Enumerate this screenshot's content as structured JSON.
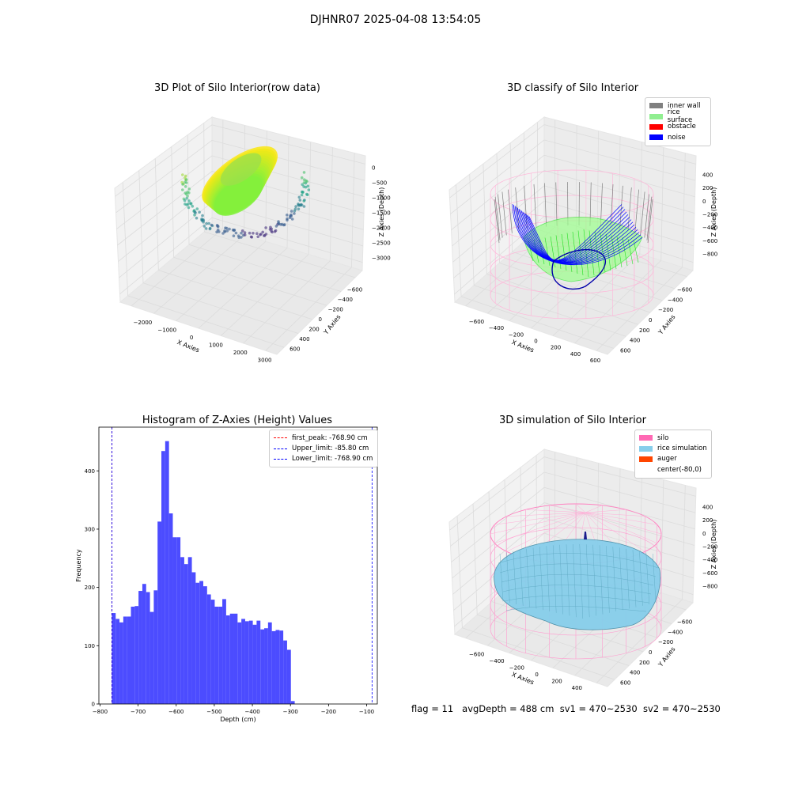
{
  "figure_title": "DJHNR07 2025-04-08 13:54:05",
  "footer": {
    "flag": "flag = 11",
    "avg_depth": "avgDepth = 488 cm",
    "sv1": "sv1 = 470~2530",
    "sv2": "sv2 = 470~2530"
  },
  "colors": {
    "inner_wall": "#808080",
    "rice_surface": "#90ee90",
    "obstacle": "#ff0000",
    "noise": "#0000ff",
    "silo": "#ff69b4",
    "rice_simulation": "#87ceeb",
    "auger": "#ff4500",
    "histogram_bars": "#4c4cff",
    "first_peak_line": "#ff0000",
    "limit_lines": "#0000ff"
  },
  "chart_data": [
    {
      "type": "scatter",
      "title": "3D Plot of Silo Interior(row data)",
      "xlabel": "X Axies",
      "ylabel": "Y Axies",
      "zlabel": "Z Axies (Depth)",
      "x_ticks": [
        "−2000",
        "−1000",
        "0",
        "1000",
        "2000",
        "3000"
      ],
      "y_ticks": [
        "600",
        "400",
        "200",
        "0",
        "−200",
        "−400",
        "−600"
      ],
      "z_ticks": [
        "0",
        "−500",
        "−1000",
        "−1500",
        "−2000",
        "−2500",
        "−3000"
      ],
      "xlim": [
        -2500,
        3000
      ],
      "ylim": [
        -650,
        650
      ],
      "zlim": [
        -3100,
        100
      ],
      "colormap": "viridis",
      "grid": true
    },
    {
      "type": "scatter",
      "title": "3D classify of Silo Interior",
      "xlabel": "X Axies",
      "ylabel": "Y Axies",
      "zlabel": "Z Axies (Depth)",
      "x_ticks": [
        "−600",
        "−400",
        "−200",
        "0",
        "200",
        "400",
        "600"
      ],
      "y_ticks": [
        "600",
        "400",
        "200",
        "0",
        "−200",
        "−400",
        "−600"
      ],
      "z_ticks": [
        "400",
        "200",
        "0",
        "−200",
        "−400",
        "−600",
        "−800"
      ],
      "legend": [
        "inner wall",
        "rice surface",
        "obstacle",
        "noise"
      ],
      "legend_position": "upper right",
      "grid": true
    },
    {
      "type": "bar",
      "title": "Histogram of Z-Axies (Height) Values",
      "xlabel": "Depth (cm)",
      "ylabel": "Frequency",
      "x_ticks": [
        "−800",
        "−700",
        "−600",
        "−500",
        "−400",
        "−300",
        "−200",
        "−100"
      ],
      "y_ticks": [
        "0",
        "100",
        "200",
        "300",
        "400"
      ],
      "xlim": [
        -803,
        -72
      ],
      "ylim": [
        0,
        475
      ],
      "bin_start": -768.9,
      "bin_width": 10.0,
      "values": [
        156,
        146,
        140,
        150,
        150,
        167,
        168,
        194,
        206,
        192,
        158,
        195,
        313,
        434,
        451,
        327,
        286,
        286,
        252,
        240,
        252,
        226,
        208,
        211,
        202,
        188,
        179,
        167,
        167,
        180,
        152,
        155,
        155,
        140,
        146,
        142,
        143,
        136,
        143,
        128,
        130,
        140,
        125,
        127,
        126,
        109,
        93,
        5
      ],
      "lines": [
        {
          "name": "first_peak: -768.90 cm",
          "x": -768.9,
          "color": "#ff0000"
        },
        {
          "name": "Upper_limit: -85.80 cm",
          "x": -85.8,
          "color": "#0000ff"
        },
        {
          "name": "Lower_limit: -768.90 cm",
          "x": -768.9,
          "color": "#0000ff"
        }
      ],
      "legend_position": "upper right"
    },
    {
      "type": "surface",
      "title": "3D simulation of Silo Interior",
      "xlabel": "X Axies",
      "ylabel": "Y Axies",
      "zlabel": "Z Axies (Depth)",
      "x_ticks": [
        "−600",
        "−400",
        "−200",
        "0",
        "200",
        "400"
      ],
      "y_ticks": [
        "600",
        "400",
        "200",
        "0",
        "−200",
        "−400",
        "−600"
      ],
      "z_ticks": [
        "400",
        "200",
        "0",
        "−200",
        "−400",
        "−600",
        "−800"
      ],
      "legend": [
        "silo",
        "rice simulation",
        "auger",
        "center(-80,0)"
      ],
      "legend_position": "upper right",
      "grid": true
    }
  ]
}
